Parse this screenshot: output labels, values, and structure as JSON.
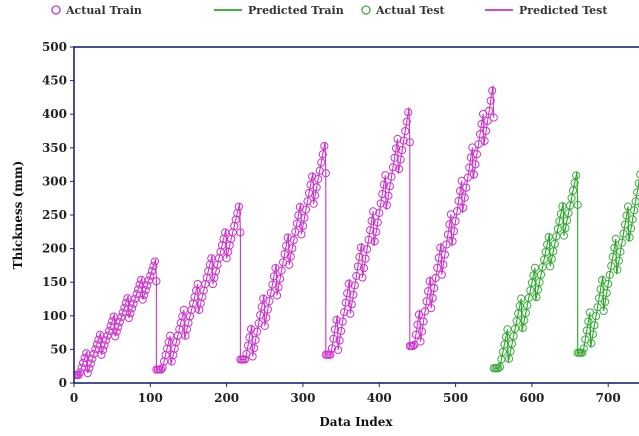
{
  "chart_data": {
    "type": "line",
    "xlabel": "Data Index",
    "ylabel": "Thickness (mm)",
    "xlim": [
      0,
      760
    ],
    "ylim": [
      0,
      500
    ],
    "xticks": [
      "0",
      "100",
      "200",
      "300",
      "400",
      "500",
      "600",
      "700"
    ],
    "yticks": [
      "0",
      "50",
      "100",
      "150",
      "200",
      "250",
      "300",
      "350",
      "400",
      "450",
      "500"
    ],
    "legend_position": "top",
    "legend": [
      {
        "label": "Actual Train",
        "marker": "circle",
        "color": "#cc33cc"
      },
      {
        "label": "Predicted Train",
        "marker": "line",
        "color": "#22aa22"
      },
      {
        "label": "Actual Test",
        "marker": "circle",
        "color": "#44aa44"
      },
      {
        "label": "Predicted Test",
        "marker": "line",
        "color": "#cc33cc"
      }
    ],
    "series": [
      {
        "name": "Actual Train",
        "color": "#cc33cc",
        "segments": [
          {
            "x_start": 0,
            "x_end": 108,
            "y_start": 12,
            "y_end": 176,
            "sub_saw": 6
          },
          {
            "x_start": 108,
            "x_end": 218,
            "y_start": 20,
            "y_end": 260,
            "sub_saw": 6
          },
          {
            "x_start": 218,
            "x_end": 330,
            "y_start": 35,
            "y_end": 353,
            "sub_saw": 7
          },
          {
            "x_start": 330,
            "x_end": 440,
            "y_start": 42,
            "y_end": 405,
            "sub_saw": 7
          },
          {
            "x_start": 440,
            "x_end": 550,
            "y_start": 55,
            "y_end": 438,
            "sub_saw": 8
          }
        ]
      },
      {
        "name": "Actual Test",
        "color": "#44aa44",
        "segments": [
          {
            "x_start": 550,
            "x_end": 660,
            "y_start": 22,
            "y_end": 308,
            "sub_saw": 6
          },
          {
            "x_start": 660,
            "x_end": 760,
            "y_start": 45,
            "y_end": 360,
            "sub_saw": 6
          }
        ]
      }
    ]
  }
}
